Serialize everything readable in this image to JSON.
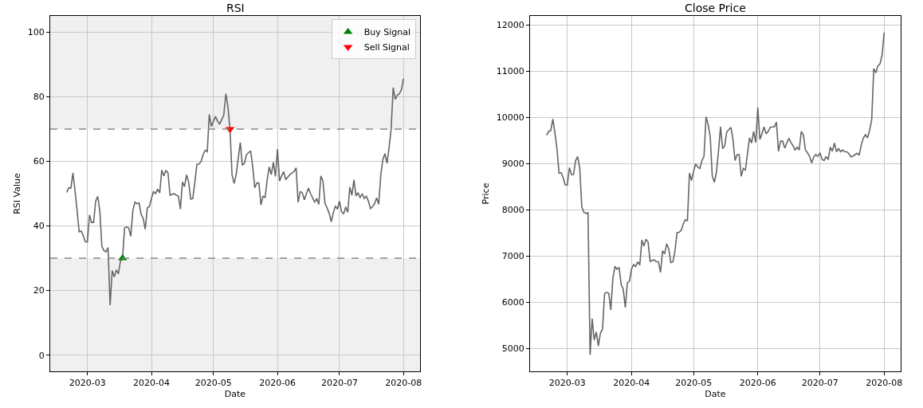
{
  "chart_data": [
    {
      "type": "line",
      "title": "RSI",
      "xlabel": "Date",
      "ylabel": "RSI Value",
      "grid": true,
      "legend": "top right",
      "xlim": [
        "2020-02-12",
        "2020-08-09"
      ],
      "xticks": [
        {
          "value": "2020-03-01",
          "label": "2020-03"
        },
        {
          "value": "2020-04-01",
          "label": "2020-04"
        },
        {
          "value": "2020-05-01",
          "label": "2020-05"
        },
        {
          "value": "2020-06-01",
          "label": "2020-06"
        },
        {
          "value": "2020-07-01",
          "label": "2020-07"
        },
        {
          "value": "2020-08-01",
          "label": "2020-08"
        }
      ],
      "ylim": [
        -5,
        105
      ],
      "yticks": [
        0,
        20,
        40,
        60,
        80,
        100
      ],
      "bands": [
        {
          "axis": "y",
          "from": 70,
          "to": 105,
          "color": "#f0f0f0"
        },
        {
          "axis": "y",
          "from": -5,
          "to": 30,
          "color": "#f0f0f0"
        }
      ],
      "ref_lines": [
        {
          "axis": "y",
          "value": 70,
          "color": "#888888",
          "line_style": "dashed"
        },
        {
          "axis": "y",
          "value": 30,
          "color": "#888888",
          "line_style": "dashed"
        }
      ],
      "series": [
        {
          "color": "#666666",
          "line_style": "solid",
          "x": [
            "2020-02-20",
            "2020-02-21",
            "2020-02-22",
            "2020-02-23",
            "2020-02-24",
            "2020-02-25",
            "2020-02-26",
            "2020-02-27",
            "2020-02-28",
            "2020-02-29",
            "2020-03-01",
            "2020-03-02",
            "2020-03-03",
            "2020-03-04",
            "2020-03-05",
            "2020-03-06",
            "2020-03-07",
            "2020-03-08",
            "2020-03-09",
            "2020-03-10",
            "2020-03-11",
            "2020-03-12",
            "2020-03-13",
            "2020-03-14",
            "2020-03-15",
            "2020-03-16",
            "2020-03-17",
            "2020-03-18",
            "2020-03-19",
            "2020-03-20",
            "2020-03-21",
            "2020-03-22",
            "2020-03-23",
            "2020-03-24",
            "2020-03-25",
            "2020-03-26",
            "2020-03-27",
            "2020-03-28",
            "2020-03-29",
            "2020-03-30",
            "2020-03-31",
            "2020-04-01",
            "2020-04-02",
            "2020-04-03",
            "2020-04-04",
            "2020-04-05",
            "2020-04-06",
            "2020-04-07",
            "2020-04-08",
            "2020-04-09",
            "2020-04-10",
            "2020-04-11",
            "2020-04-12",
            "2020-04-13",
            "2020-04-14",
            "2020-04-15",
            "2020-04-16",
            "2020-04-17",
            "2020-04-18",
            "2020-04-19",
            "2020-04-20",
            "2020-04-21",
            "2020-04-22",
            "2020-04-23",
            "2020-04-24",
            "2020-04-25",
            "2020-04-26",
            "2020-04-27",
            "2020-04-28",
            "2020-04-29",
            "2020-04-30",
            "2020-05-01",
            "2020-05-02",
            "2020-05-03",
            "2020-05-04",
            "2020-05-05",
            "2020-05-06",
            "2020-05-07",
            "2020-05-08",
            "2020-05-09",
            "2020-05-10",
            "2020-05-11",
            "2020-05-12",
            "2020-05-13",
            "2020-05-14",
            "2020-05-15",
            "2020-05-16",
            "2020-05-17",
            "2020-05-18",
            "2020-05-19",
            "2020-05-20",
            "2020-05-21",
            "2020-05-22",
            "2020-05-23",
            "2020-05-24",
            "2020-05-25",
            "2020-05-26",
            "2020-05-27",
            "2020-05-28",
            "2020-05-29",
            "2020-05-30",
            "2020-05-31",
            "2020-06-01",
            "2020-06-02",
            "2020-06-03",
            "2020-06-04",
            "2020-06-05",
            "2020-06-06",
            "2020-06-07",
            "2020-06-08",
            "2020-06-09",
            "2020-06-10",
            "2020-06-11",
            "2020-06-12",
            "2020-06-13",
            "2020-06-14",
            "2020-06-15",
            "2020-06-16",
            "2020-06-17",
            "2020-06-18",
            "2020-06-19",
            "2020-06-20",
            "2020-06-21",
            "2020-06-22",
            "2020-06-23",
            "2020-06-24",
            "2020-06-25",
            "2020-06-26",
            "2020-06-27",
            "2020-06-28",
            "2020-06-29",
            "2020-06-30",
            "2020-07-01",
            "2020-07-02",
            "2020-07-03",
            "2020-07-04",
            "2020-07-05",
            "2020-07-06",
            "2020-07-07",
            "2020-07-08",
            "2020-07-09",
            "2020-07-10",
            "2020-07-11",
            "2020-07-12",
            "2020-07-13",
            "2020-07-14",
            "2020-07-15",
            "2020-07-16",
            "2020-07-17",
            "2020-07-18",
            "2020-07-19",
            "2020-07-20",
            "2020-07-21",
            "2020-07-22",
            "2020-07-23",
            "2020-07-24",
            "2020-07-25",
            "2020-07-26",
            "2020-07-27",
            "2020-07-28",
            "2020-07-29",
            "2020-07-30",
            "2020-07-31",
            "2020-08-01"
          ],
          "values": [
            50.4,
            51.8,
            51.7,
            56.4,
            51.0,
            44.8,
            38.2,
            38.4,
            37.0,
            35.1,
            35.1,
            43.4,
            41.1,
            41.1,
            47.7,
            49.2,
            44.8,
            33.7,
            32.4,
            32.0,
            33.3,
            15.5,
            26.2,
            24.2,
            26.4,
            25.2,
            29.1,
            30.0,
            39.4,
            39.7,
            39.4,
            36.8,
            44.8,
            47.4,
            46.9,
            47.1,
            43.6,
            42.3,
            39.0,
            45.6,
            46.0,
            48.5,
            50.6,
            50.0,
            51.4,
            50.2,
            57.3,
            55.5,
            57.2,
            56.4,
            49.5,
            49.8,
            50.0,
            49.5,
            49.3,
            45.2,
            53.6,
            52.2,
            55.8,
            53.6,
            48.3,
            48.5,
            53.5,
            59.1,
            59.2,
            59.9,
            62.1,
            63.4,
            63.0,
            74.5,
            70.8,
            72.4,
            73.9,
            72.4,
            71.6,
            72.9,
            74.3,
            80.9,
            77.0,
            70.0,
            55.9,
            53.1,
            55.9,
            60.9,
            65.8,
            58.8,
            59.4,
            62.1,
            62.7,
            63.2,
            58.4,
            51.8,
            53.3,
            53.3,
            46.5,
            49.3,
            48.7,
            54.3,
            58.3,
            55.9,
            59.7,
            55.3,
            63.8,
            53.9,
            55.5,
            56.8,
            54.3,
            55.1,
            55.9,
            56.4,
            56.8,
            58.0,
            47.3,
            50.6,
            50.3,
            48.1,
            50.0,
            51.7,
            50.0,
            48.7,
            47.3,
            48.5,
            46.7,
            55.5,
            53.9,
            46.9,
            45.6,
            44.0,
            41.3,
            44.0,
            46.2,
            45.2,
            47.7,
            44.4,
            43.7,
            45.9,
            44.2,
            52.0,
            49.5,
            54.3,
            49.3,
            50.3,
            48.7,
            50.0,
            48.5,
            49.2,
            47.7,
            45.4,
            46.0,
            46.9,
            48.7,
            46.7,
            55.9,
            60.5,
            62.4,
            59.4,
            64.2,
            70.0,
            82.8,
            79.2,
            80.5,
            80.9,
            82.3,
            85.6
          ]
        },
        {
          "type": "scatter",
          "name": "Buy Signal",
          "color": "#008000",
          "marker": "triangle",
          "x": [
            "2020-03-18"
          ],
          "values": [
            30.0
          ]
        },
        {
          "type": "scatter",
          "name": "Sell Signal",
          "color": "#ff0000",
          "marker": "triangle-down",
          "x": [
            "2020-05-09"
          ],
          "values": [
            70.0
          ]
        }
      ]
    },
    {
      "type": "line",
      "title": "Close Price",
      "xlabel": "Date",
      "ylabel": "Price",
      "grid": true,
      "xlim": [
        "2020-02-12",
        "2020-08-09"
      ],
      "xticks": [
        {
          "value": "2020-03-01",
          "label": "2020-03"
        },
        {
          "value": "2020-04-01",
          "label": "2020-04"
        },
        {
          "value": "2020-05-01",
          "label": "2020-05"
        },
        {
          "value": "2020-06-01",
          "label": "2020-06"
        },
        {
          "value": "2020-07-01",
          "label": "2020-07"
        },
        {
          "value": "2020-08-01",
          "label": "2020-08"
        }
      ],
      "ylim": [
        4500,
        12190
      ],
      "yticks": [
        5000,
        6000,
        7000,
        8000,
        9000,
        10000,
        11000,
        12000
      ],
      "series": [
        {
          "color": "#666666",
          "line_style": "solid",
          "x": [
            "2020-02-20",
            "2020-02-21",
            "2020-02-22",
            "2020-02-23",
            "2020-02-24",
            "2020-02-25",
            "2020-02-26",
            "2020-02-27",
            "2020-02-28",
            "2020-02-29",
            "2020-03-01",
            "2020-03-02",
            "2020-03-03",
            "2020-03-04",
            "2020-03-05",
            "2020-03-06",
            "2020-03-07",
            "2020-03-08",
            "2020-03-09",
            "2020-03-10",
            "2020-03-11",
            "2020-03-12",
            "2020-03-13",
            "2020-03-14",
            "2020-03-15",
            "2020-03-16",
            "2020-03-17",
            "2020-03-18",
            "2020-03-19",
            "2020-03-20",
            "2020-03-21",
            "2020-03-22",
            "2020-03-23",
            "2020-03-24",
            "2020-03-25",
            "2020-03-26",
            "2020-03-27",
            "2020-03-28",
            "2020-03-29",
            "2020-03-30",
            "2020-03-31",
            "2020-04-01",
            "2020-04-02",
            "2020-04-03",
            "2020-04-04",
            "2020-04-05",
            "2020-04-06",
            "2020-04-07",
            "2020-04-08",
            "2020-04-09",
            "2020-04-10",
            "2020-04-11",
            "2020-04-12",
            "2020-04-13",
            "2020-04-14",
            "2020-04-15",
            "2020-04-16",
            "2020-04-17",
            "2020-04-18",
            "2020-04-19",
            "2020-04-20",
            "2020-04-21",
            "2020-04-22",
            "2020-04-23",
            "2020-04-24",
            "2020-04-25",
            "2020-04-26",
            "2020-04-27",
            "2020-04-28",
            "2020-04-29",
            "2020-04-30",
            "2020-05-01",
            "2020-05-02",
            "2020-05-03",
            "2020-05-04",
            "2020-05-05",
            "2020-05-06",
            "2020-05-07",
            "2020-05-08",
            "2020-05-09",
            "2020-05-10",
            "2020-05-11",
            "2020-05-12",
            "2020-05-13",
            "2020-05-14",
            "2020-05-15",
            "2020-05-16",
            "2020-05-17",
            "2020-05-18",
            "2020-05-19",
            "2020-05-20",
            "2020-05-21",
            "2020-05-22",
            "2020-05-23",
            "2020-05-24",
            "2020-05-25",
            "2020-05-26",
            "2020-05-27",
            "2020-05-28",
            "2020-05-29",
            "2020-05-30",
            "2020-05-31",
            "2020-06-01",
            "2020-06-02",
            "2020-06-03",
            "2020-06-04",
            "2020-06-05",
            "2020-06-06",
            "2020-06-07",
            "2020-06-08",
            "2020-06-09",
            "2020-06-10",
            "2020-06-11",
            "2020-06-12",
            "2020-06-13",
            "2020-06-14",
            "2020-06-15",
            "2020-06-16",
            "2020-06-17",
            "2020-06-18",
            "2020-06-19",
            "2020-06-20",
            "2020-06-21",
            "2020-06-22",
            "2020-06-23",
            "2020-06-24",
            "2020-06-25",
            "2020-06-26",
            "2020-06-27",
            "2020-06-28",
            "2020-06-29",
            "2020-06-30",
            "2020-07-01",
            "2020-07-02",
            "2020-07-03",
            "2020-07-04",
            "2020-07-05",
            "2020-07-06",
            "2020-07-07",
            "2020-07-08",
            "2020-07-09",
            "2020-07-10",
            "2020-07-11",
            "2020-07-12",
            "2020-07-13",
            "2020-07-14",
            "2020-07-15",
            "2020-07-16",
            "2020-07-17",
            "2020-07-18",
            "2020-07-19",
            "2020-07-20",
            "2020-07-21",
            "2020-07-22",
            "2020-07-23",
            "2020-07-24",
            "2020-07-25",
            "2020-07-26",
            "2020-07-27",
            "2020-07-28",
            "2020-07-29",
            "2020-07-30",
            "2020-07-31",
            "2020-08-01"
          ],
          "values": [
            9610,
            9690,
            9710,
            9960,
            9660,
            9320,
            8790,
            8800,
            8690,
            8530,
            8530,
            8910,
            8760,
            8760,
            9060,
            9150,
            8890,
            8060,
            7940,
            7920,
            7930,
            4860,
            5640,
            5180,
            5350,
            5050,
            5330,
            5410,
            6180,
            6210,
            6190,
            5830,
            6510,
            6770,
            6710,
            6750,
            6380,
            6280,
            5880,
            6410,
            6450,
            6710,
            6810,
            6770,
            6870,
            6800,
            7340,
            7210,
            7360,
            7300,
            6880,
            6900,
            6910,
            6870,
            6870,
            6640,
            7110,
            7040,
            7260,
            7150,
            6850,
            6870,
            7110,
            7500,
            7510,
            7550,
            7690,
            7780,
            7760,
            8790,
            8630,
            8830,
            8990,
            8920,
            8890,
            9060,
            9150,
            10010,
            9840,
            9580,
            8730,
            8590,
            8800,
            9260,
            9790,
            9320,
            9380,
            9680,
            9730,
            9780,
            9520,
            9060,
            9190,
            9190,
            8720,
            8890,
            8850,
            9210,
            9550,
            9440,
            9690,
            9450,
            10210,
            9520,
            9640,
            9790,
            9640,
            9690,
            9780,
            9790,
            9790,
            9890,
            9260,
            9480,
            9480,
            9330,
            9440,
            9540,
            9450,
            9380,
            9290,
            9350,
            9290,
            9690,
            9620,
            9290,
            9230,
            9150,
            9010,
            9140,
            9190,
            9150,
            9230,
            9090,
            9060,
            9150,
            9080,
            9350,
            9260,
            9440,
            9250,
            9320,
            9250,
            9290,
            9250,
            9250,
            9210,
            9140,
            9160,
            9190,
            9220,
            9180,
            9410,
            9550,
            9620,
            9550,
            9720,
            9940,
            11050,
            10960,
            11110,
            11150,
            11340,
            11830
          ]
        }
      ]
    }
  ]
}
